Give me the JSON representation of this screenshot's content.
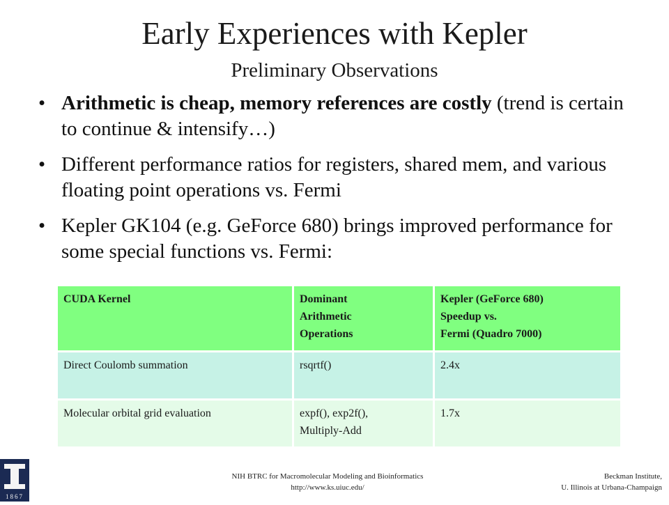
{
  "slide": {
    "title": "Early Experiences with Kepler",
    "subtitle": "Preliminary Observations"
  },
  "bullets": [
    {
      "symbol": "•",
      "bold_text": "Arithmetic is cheap, memory references are costly",
      "text": "(trend is certain to continue & intensify…)"
    },
    {
      "symbol": "•",
      "text": "Different performance ratios for registers, shared mem, and various floating point operations vs. Fermi"
    },
    {
      "symbol": "•",
      "text": "Kepler GK104 (e.g. GeForce 680) brings improved performance for some special functions vs. Fermi:"
    }
  ],
  "table": {
    "headers": [
      [
        "CUDA Kernel"
      ],
      [
        "Dominant",
        "Arithmetic",
        "Operations"
      ],
      [
        "Kepler (GeForce 680)",
        "Speedup vs.",
        "Fermi (Quadro 7000)"
      ]
    ],
    "rows": [
      [
        "Direct Coulomb summation",
        [
          "rsqrtf()"
        ],
        "2.4x"
      ],
      [
        "Molecular orbital grid evaluation",
        [
          "expf(), exp2f(),",
          "Multiply-Add"
        ],
        "1.7x"
      ]
    ],
    "colors": {
      "header_bg": "#80ff80",
      "row1_bg": "#c6f2e6",
      "row2_bg": "#e4fbe8"
    }
  },
  "logo": {
    "icon": "university-of-illinois-logo",
    "text": "1867",
    "color": "#1b2a53",
    "accent": "#f4f4f4"
  },
  "footer": {
    "center_line1": "NIH BTRC for Macromolecular Modeling and Bioinformatics",
    "center_line2": "http://www.ks.uiuc.edu/",
    "right_line1": "Beckman Institute,",
    "right_line2": "U. Illinois at Urbana-Champaign"
  }
}
